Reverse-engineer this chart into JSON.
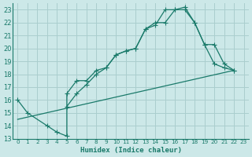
{
  "xlabel": "Humidex (Indice chaleur)",
  "bg_color": "#cce8e8",
  "grid_color": "#aacece",
  "line_color": "#1a7a6a",
  "xlim": [
    -0.5,
    23.5
  ],
  "ylim": [
    13,
    23.5
  ],
  "xticks": [
    0,
    1,
    2,
    3,
    4,
    5,
    6,
    7,
    8,
    9,
    10,
    11,
    12,
    13,
    14,
    15,
    16,
    17,
    18,
    19,
    20,
    21,
    22,
    23
  ],
  "yticks": [
    13,
    14,
    15,
    16,
    17,
    18,
    19,
    20,
    21,
    22,
    23
  ],
  "curve1_x": [
    0,
    1,
    3,
    4,
    5,
    5,
    6,
    7,
    8,
    9,
    10,
    11,
    12,
    13,
    14,
    15,
    16,
    17,
    18,
    19,
    20,
    21,
    22
  ],
  "curve1_y": [
    16,
    15,
    14,
    13.5,
    13.2,
    16.5,
    17.5,
    17.5,
    18.3,
    18.5,
    19.5,
    19.8,
    20.0,
    21.5,
    21.8,
    23.0,
    23.0,
    23.2,
    22.0,
    20.3,
    18.8,
    18.5,
    18.3
  ],
  "curve2_x": [
    5,
    6,
    7,
    8,
    9,
    10,
    11,
    12,
    13,
    14,
    15,
    16,
    17,
    18,
    19,
    20,
    21,
    22
  ],
  "curve2_y": [
    15.5,
    16.5,
    17.2,
    18.0,
    18.5,
    19.5,
    19.8,
    20.0,
    21.5,
    22.0,
    22.0,
    23.0,
    23.0,
    22.0,
    20.3,
    20.3,
    18.8,
    18.3
  ],
  "curve3_x": [
    0,
    22
  ],
  "curve3_y": [
    14.5,
    18.3
  ],
  "marker_size": 4,
  "linewidth": 0.9
}
